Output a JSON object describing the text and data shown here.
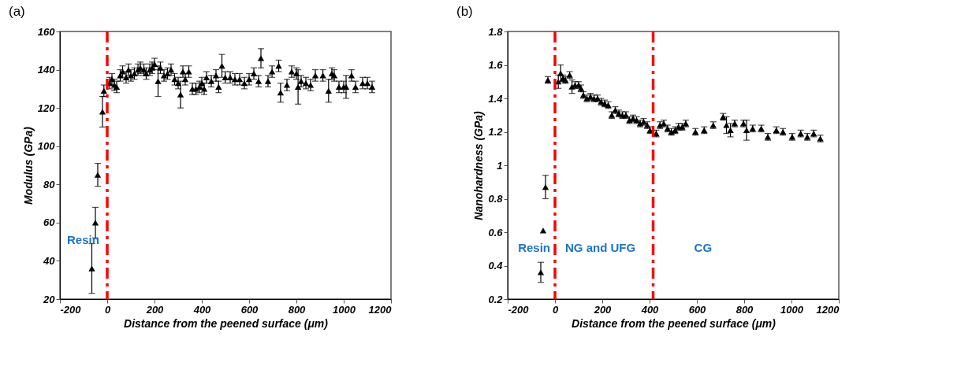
{
  "chart_data": [
    {
      "type": "scatter",
      "title": "(a)",
      "xlabel": "Distance from the peened surface (μm)",
      "ylabel": "Modulus (GPa)",
      "xlim": [
        -200,
        1200
      ],
      "xticks": [
        -200,
        0,
        200,
        400,
        600,
        800,
        1000,
        1200
      ],
      "ylim": [
        20,
        160
      ],
      "yticks": [
        20,
        40,
        60,
        80,
        100,
        120,
        140,
        160
      ],
      "grid": false,
      "marker": "triangle",
      "series": [
        {
          "color": "#000000",
          "x": [
            -65,
            -50,
            -40,
            -20,
            -14,
            10,
            20,
            30,
            40,
            55,
            65,
            80,
            90,
            100,
            115,
            130,
            140,
            155,
            165,
            180,
            190,
            200,
            215,
            225,
            240,
            255,
            270,
            285,
            300,
            310,
            320,
            330,
            345,
            360,
            375,
            390,
            400,
            410,
            420,
            440,
            460,
            471,
            485,
            499,
            520,
            540,
            560,
            580,
            600,
            620,
            640,
            650,
            680,
            697,
            725,
            733,
            760,
            780,
            800,
            807,
            820,
            840,
            860,
            880,
            912,
            936,
            950,
            960,
            980,
            1000,
            1010,
            1033,
            1050,
            1080,
            1100,
            1120
          ],
          "values": [
            36,
            60,
            85,
            118,
            129,
            133,
            135,
            132,
            131,
            137,
            139,
            136,
            140,
            137,
            138,
            140,
            141,
            140,
            138,
            140,
            141,
            143,
            134,
            141,
            137,
            138,
            140,
            135,
            133,
            127,
            139,
            135,
            139,
            130,
            130,
            131,
            133,
            130,
            136,
            134,
            137,
            131,
            142,
            136,
            136,
            135,
            135,
            133,
            135,
            138,
            134,
            146,
            134,
            139,
            142,
            128,
            132,
            139,
            138,
            131,
            134,
            133,
            132,
            137,
            137,
            129,
            138,
            137,
            131,
            131,
            131,
            137,
            131,
            133,
            133,
            131
          ],
          "errors": [
            13,
            8,
            6,
            8,
            3,
            3,
            3,
            3,
            3,
            3,
            3,
            3,
            3,
            3,
            3,
            3,
            3,
            3,
            3,
            3,
            3,
            3,
            8,
            3,
            3,
            3,
            3,
            3,
            3,
            7,
            3,
            3,
            3,
            3,
            3,
            3,
            3,
            3,
            3,
            3,
            3,
            3,
            6,
            3,
            3,
            3,
            3,
            3,
            3,
            3,
            3,
            5,
            3,
            3,
            3,
            5,
            3,
            3,
            3,
            9,
            3,
            3,
            3,
            3,
            3,
            6,
            3,
            3,
            3,
            3,
            6,
            3,
            3,
            3,
            3,
            3
          ]
        }
      ],
      "ref_lines": [
        {
          "axis": "x",
          "value": 0,
          "color": "#ff0000",
          "line_style": "dashdot"
        }
      ],
      "annotations": [
        "Resin"
      ]
    },
    {
      "type": "scatter",
      "title": "(b)",
      "xlabel": "Distance from the peened surface (μm)",
      "ylabel": "Nanohardness (GPa)",
      "xlim": [
        -200,
        1200
      ],
      "xticks": [
        -200,
        0,
        200,
        400,
        600,
        800,
        1000,
        1200
      ],
      "ylim": [
        0.2,
        1.8
      ],
      "yticks": [
        0.2,
        0.4,
        0.6,
        0.8,
        1,
        1.2,
        1.4,
        1.6,
        1.8
      ],
      "grid": false,
      "marker": "triangle",
      "series": [
        {
          "color": "#000000",
          "x": [
            -60,
            -50,
            -40,
            -30,
            14,
            24,
            34,
            44,
            62,
            72,
            85,
            100,
            110,
            120,
            135,
            150,
            165,
            180,
            195,
            210,
            225,
            240,
            255,
            270,
            285,
            300,
            315,
            330,
            345,
            360,
            375,
            390,
            402,
            428,
            444,
            460,
            476,
            492,
            508,
            522,
            538,
            553,
            594,
            631,
            669,
            711,
            725,
            742,
            760,
            797,
            810,
            836,
            872,
            900,
            936,
            964,
            1003,
            1039,
            1067,
            1094,
            1122
          ],
          "values": [
            0.36,
            0.61,
            0.87,
            1.51,
            1.5,
            1.55,
            1.52,
            1.51,
            1.54,
            1.47,
            1.48,
            1.48,
            1.46,
            1.42,
            1.4,
            1.41,
            1.4,
            1.4,
            1.38,
            1.37,
            1.36,
            1.3,
            1.33,
            1.31,
            1.3,
            1.3,
            1.27,
            1.28,
            1.27,
            1.25,
            1.26,
            1.24,
            1.21,
            1.19,
            1.24,
            1.25,
            1.22,
            1.2,
            1.21,
            1.23,
            1.23,
            1.25,
            1.2,
            1.21,
            1.24,
            1.29,
            1.24,
            1.21,
            1.25,
            1.25,
            1.21,
            1.22,
            1.22,
            1.17,
            1.21,
            1.2,
            1.17,
            1.19,
            1.17,
            1.19,
            1.16
          ],
          "errors": [
            0.06,
            null,
            0.07,
            0.02,
            0.04,
            0.05,
            0.02,
            0.02,
            0.02,
            0.04,
            0.02,
            0.02,
            0.02,
            0.02,
            0.02,
            0.02,
            0.02,
            0.02,
            0.02,
            0.02,
            0.02,
            0.02,
            0.02,
            0.02,
            0.02,
            0.02,
            0.02,
            0.02,
            0.02,
            0.02,
            0.02,
            0.02,
            0.02,
            0.02,
            0.02,
            0.02,
            0.02,
            0.02,
            0.02,
            0.02,
            0.02,
            0.02,
            0.02,
            0.02,
            0.02,
            0.02,
            0.05,
            0.04,
            0.02,
            0.02,
            0.06,
            0.02,
            0.02,
            0.02,
            0.02,
            0.02,
            0.02,
            0.02,
            0.02,
            0.02,
            0.02
          ]
        }
      ],
      "ref_lines": [
        {
          "axis": "x",
          "value": 0,
          "color": "#ff0000",
          "line_style": "dashdot"
        },
        {
          "axis": "x",
          "value": 415,
          "color": "#ff0000",
          "line_style": "dashdot"
        }
      ],
      "annotations": [
        "Resin",
        "NG and UFG",
        "CG"
      ]
    }
  ]
}
